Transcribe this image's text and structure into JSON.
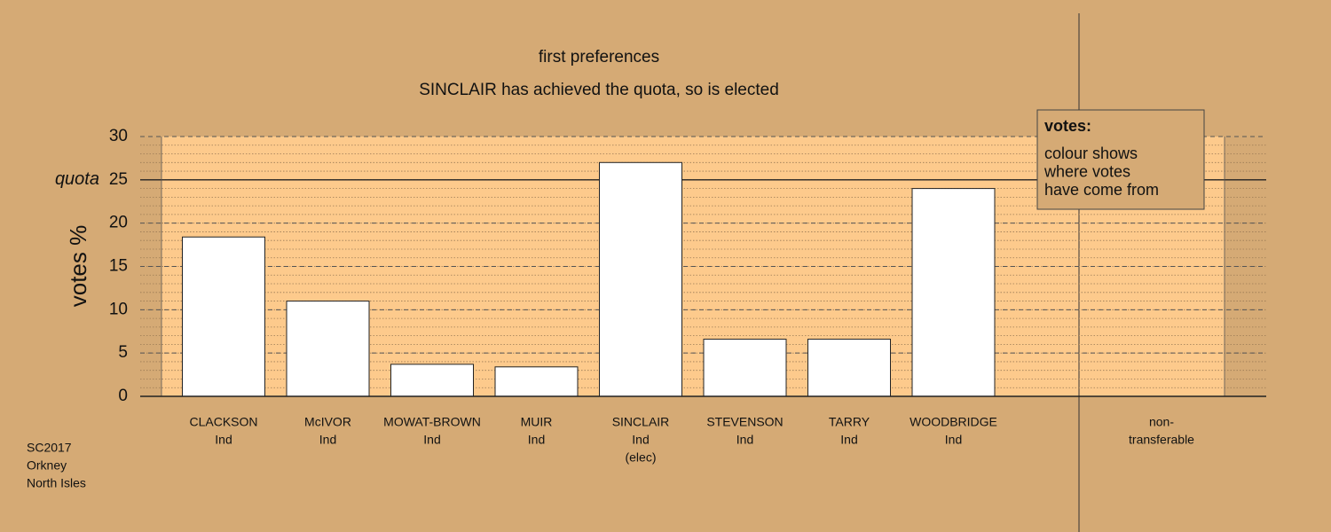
{
  "chart_data": {
    "type": "bar",
    "title": "first preferences",
    "subtitle": "SINCLAIR has achieved the quota, so is elected",
    "y_label": "votes %",
    "categories": [
      [
        "CLACKSON",
        "Ind"
      ],
      [
        "McIVOR",
        "Ind"
      ],
      [
        "MOWAT-BROWN",
        "Ind"
      ],
      [
        "MUIR",
        "Ind"
      ],
      [
        "SINCLAIR",
        "Ind",
        "(elec)"
      ],
      [
        "STEVENSON",
        "Ind"
      ],
      [
        "TARRY",
        "Ind"
      ],
      [
        "WOODBRIDGE",
        "Ind"
      ],
      [
        "non-",
        "transferable"
      ]
    ],
    "values": [
      18.4,
      11.0,
      3.7,
      3.4,
      27.0,
      6.6,
      6.6,
      24.0,
      null
    ],
    "color": "#ffffff",
    "ylim": [
      0,
      30
    ],
    "yticks": [
      0,
      5,
      10,
      15,
      20,
      25,
      30
    ],
    "grid": true,
    "quota": {
      "value": 25,
      "label": "quota"
    },
    "legend": {
      "title": "votes:",
      "lines": [
        "colour shows",
        "where votes",
        "have come from"
      ]
    },
    "footnote": [
      "SC2017",
      "Orkney",
      "North Isles"
    ]
  }
}
